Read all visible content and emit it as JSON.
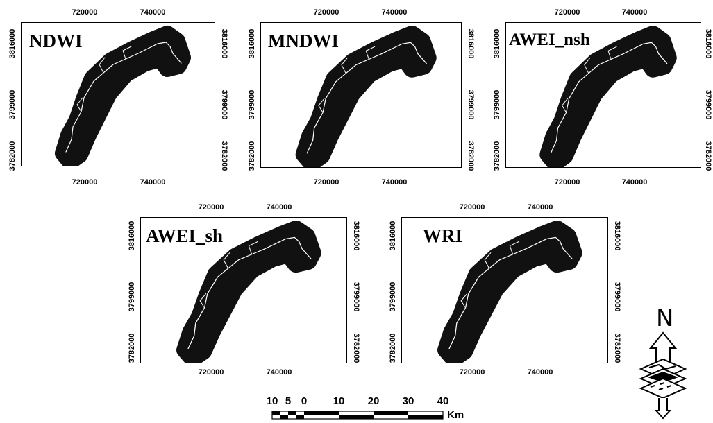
{
  "panels": [
    {
      "title": "NDWI",
      "x_ticks": [
        "720000",
        "740000"
      ],
      "y_ticks": [
        "3816000",
        "3799000",
        "3782000"
      ]
    },
    {
      "title": "MNDWI",
      "x_ticks": [
        "720000",
        "740000"
      ],
      "y_ticks": [
        "3816000",
        "3799000",
        "3782000"
      ]
    },
    {
      "title": "AWEI_nsh",
      "x_ticks": [
        "720000",
        "740000"
      ],
      "y_ticks": [
        "3816000",
        "3799000",
        "3782000"
      ]
    },
    {
      "title": "AWEI_sh",
      "x_ticks": [
        "720000",
        "740000"
      ],
      "y_ticks": [
        "3816000",
        "3799000",
        "3782000"
      ]
    },
    {
      "title": "WRI",
      "x_ticks": [
        "720000",
        "740000"
      ],
      "y_ticks": [
        "3816000",
        "3799000",
        "3782000"
      ]
    }
  ],
  "scale_bar": {
    "labels": [
      "10",
      "5",
      "0",
      "10",
      "20",
      "30",
      "40"
    ],
    "unit": "Km"
  },
  "north_arrow": {
    "label": "N"
  },
  "colors": {
    "water_body": "#111111",
    "river_line": "#ffffff",
    "frame": "#000000"
  }
}
